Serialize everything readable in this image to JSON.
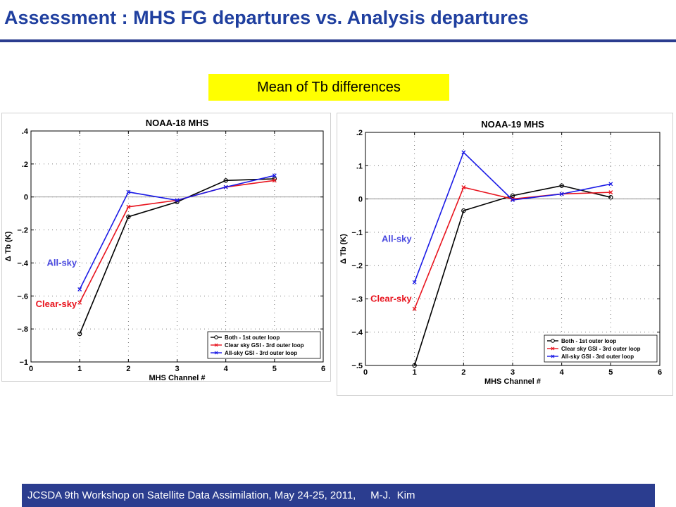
{
  "slide": {
    "title": "Assessment : MHS FG departures vs. Analysis departures",
    "subtitle": "Mean of Tb differences",
    "footer": "JCSDA 9th Workshop on Satellite Data Assimilation, May 24-25, 2011,     M-J.  Kim"
  },
  "colors": {
    "title": "#1f3f9f",
    "bar": "#2b3d8f",
    "highlight": "#ffff00"
  },
  "chart_data": [
    {
      "type": "line",
      "title": "NOAA-18 MHS",
      "xlabel": "MHS Channel #",
      "ylabel": "Δ Tb (K)",
      "xlim": [
        0,
        6
      ],
      "ylim": [
        -1,
        0.4
      ],
      "xticks": [
        0,
        1,
        2,
        3,
        4,
        5,
        6
      ],
      "yticks": [
        -1,
        -0.8,
        -0.6,
        -0.4,
        -0.2,
        0,
        0.2,
        0.4
      ],
      "grid": true,
      "legend_position": "bottom-right",
      "x": [
        1,
        2,
        3,
        4,
        5
      ],
      "series": [
        {
          "name": "Both - 1st outer loop",
          "color": "#000000",
          "marker": "circle",
          "values": [
            -0.83,
            -0.12,
            -0.03,
            0.1,
            0.11
          ]
        },
        {
          "name": "Clear sky GSI - 3rd outer loop",
          "color": "#e8141e",
          "marker": "x",
          "values": [
            -0.64,
            -0.06,
            -0.02,
            0.06,
            0.1
          ]
        },
        {
          "name": "All-sky GSI - 3rd outer loop",
          "color": "#1a1ae6",
          "marker": "x",
          "values": [
            -0.56,
            0.03,
            -0.02,
            0.06,
            0.13
          ]
        }
      ],
      "annotations": [
        {
          "text": "All-sky",
          "color": "#4a4ae0",
          "x": 1,
          "y": -0.4
        },
        {
          "text": "Clear-sky",
          "color": "#e8141e",
          "x": 1,
          "y": -0.65
        }
      ]
    },
    {
      "type": "line",
      "title": "NOAA-19 MHS",
      "xlabel": "MHS Channel #",
      "ylabel": "Δ Tb (K)",
      "xlim": [
        0,
        6
      ],
      "ylim": [
        -0.5,
        0.2
      ],
      "xticks": [
        0,
        1,
        2,
        3,
        4,
        5,
        6
      ],
      "yticks": [
        -0.5,
        -0.4,
        -0.3,
        -0.2,
        -0.1,
        0,
        0.1,
        0.2
      ],
      "grid": true,
      "legend_position": "bottom-right",
      "x": [
        1,
        2,
        3,
        4,
        5
      ],
      "series": [
        {
          "name": "Both - 1st outer loop",
          "color": "#000000",
          "marker": "circle",
          "values": [
            -0.5,
            -0.035,
            0.01,
            0.04,
            0.005
          ]
        },
        {
          "name": "Clear sky GSI - 3rd outer loop",
          "color": "#e8141e",
          "marker": "x",
          "values": [
            -0.33,
            0.035,
            0.0,
            0.015,
            0.02
          ]
        },
        {
          "name": "All-sky GSI - 3rd outer loop",
          "color": "#1a1ae6",
          "marker": "x",
          "values": [
            -0.25,
            0.14,
            -0.003,
            0.015,
            0.045
          ]
        }
      ],
      "annotations": [
        {
          "text": "All-sky",
          "color": "#4a4ae0",
          "x": 1,
          "y": -0.12
        },
        {
          "text": "Clear-sky",
          "color": "#e8141e",
          "x": 1,
          "y": -0.3
        }
      ]
    }
  ]
}
